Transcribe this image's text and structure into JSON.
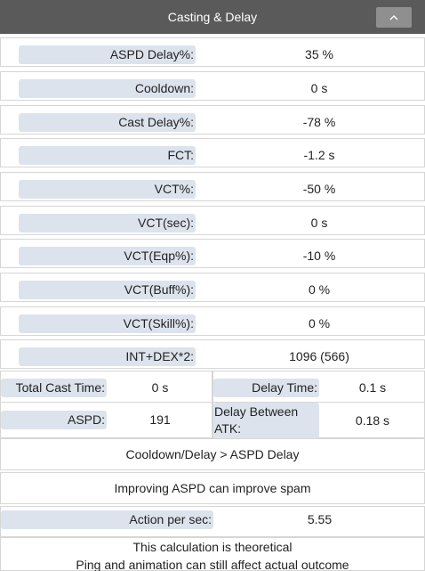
{
  "header": {
    "title": "Casting & Delay"
  },
  "rows": [
    {
      "label": "ASPD Delay%:",
      "value": "35 %"
    },
    {
      "label": "Cooldown:",
      "value": "0 s"
    },
    {
      "label": "Cast Delay%:",
      "value": "-78 %"
    },
    {
      "label": "FCT:",
      "value": "-1.2 s"
    },
    {
      "label": "VCT%:",
      "value": "-50 %"
    },
    {
      "label": "VCT(sec):",
      "value": "0 s"
    },
    {
      "label": "VCT(Eqp%):",
      "value": "-10 %"
    },
    {
      "label": "VCT(Buff%):",
      "value": "0 %"
    },
    {
      "label": "VCT(Skill%):",
      "value": "0 %"
    },
    {
      "label": "INT+DEX*2:",
      "value": "1096 (566)"
    }
  ],
  "total_cast_time": {
    "label": "Total Cast Time:",
    "value": "0 s"
  },
  "delay_time": {
    "label": "Delay Time:",
    "value": "0.1 s"
  },
  "aspd": {
    "label": "ASPD:",
    "value": "191"
  },
  "delay_between_atk": {
    "label": "Delay Between ATK:",
    "value": "0.18 s"
  },
  "note_cooldown": "Cooldown/Delay > ASPD Delay",
  "note_spam": "Improving ASPD can improve spam",
  "action_per_sec": {
    "label": "Action per sec:",
    "value": "5.55"
  },
  "disclaimer": {
    "line1": "This calculation is theoretical",
    "line2": "Ping and animation can still affect actual outcome"
  }
}
